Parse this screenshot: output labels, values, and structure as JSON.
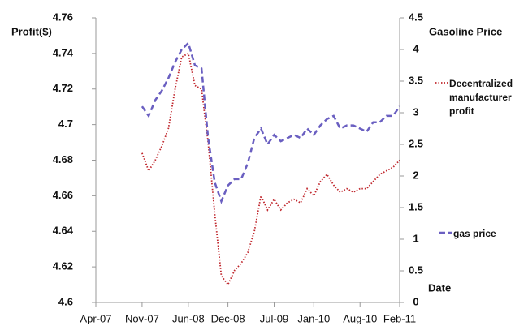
{
  "chart_data": {
    "type": "line",
    "y_label": "Profit($)",
    "y2_label": "Gasoline Price",
    "x_label": "Date",
    "x": [
      7,
      8,
      9,
      10,
      11,
      12,
      13,
      14,
      15,
      16,
      17,
      18,
      19,
      20,
      21,
      22,
      23,
      24,
      25,
      26,
      27,
      28,
      29,
      30,
      31,
      32,
      33,
      34,
      35,
      36,
      37,
      38,
      39,
      40,
      41,
      42,
      43,
      44,
      45,
      46
    ],
    "xlim": [
      0,
      46
    ],
    "xticks": [
      {
        "value": 0,
        "label": "Apr-07"
      },
      {
        "value": 7,
        "label": "Nov-07"
      },
      {
        "value": 14,
        "label": "Jun-08"
      },
      {
        "value": 20,
        "label": "Dec-08"
      },
      {
        "value": 27,
        "label": "Jul-09"
      },
      {
        "value": 33,
        "label": "Jan-10"
      },
      {
        "value": 40,
        "label": "Aug-10"
      },
      {
        "value": 46,
        "label": "Feb-11"
      }
    ],
    "ylim": [
      4.6,
      4.76
    ],
    "yticks": [
      4.6,
      4.62,
      4.64,
      4.66,
      4.68,
      4.7,
      4.72,
      4.74,
      4.76
    ],
    "y2lim": [
      0,
      4.5
    ],
    "y2ticks": [
      0,
      0.5,
      1,
      1.5,
      2,
      2.5,
      3,
      3.5,
      4,
      4.5
    ],
    "legend": "right",
    "series": [
      {
        "name": "Decentralized manufacturer profit",
        "color": "#c0272d",
        "style": "dotted",
        "values": [
          4.684,
          4.674,
          4.68,
          4.688,
          4.698,
          4.72,
          4.738,
          4.74,
          4.722,
          4.72,
          4.69,
          4.65,
          4.615,
          4.61,
          4.618,
          4.622,
          4.628,
          4.64,
          4.66,
          4.652,
          4.658,
          4.652,
          4.656,
          4.658,
          4.656,
          4.664,
          4.66,
          4.668,
          4.672,
          4.666,
          4.662,
          4.664,
          4.662,
          4.664,
          4.664,
          4.668,
          4.672,
          4.674,
          4.676,
          4.68
        ]
      },
      {
        "name": "gas price",
        "color": "#6a5fc1",
        "style": "dashed",
        "axis": "y2",
        "values": [
          3.1,
          2.95,
          3.2,
          3.35,
          3.55,
          3.8,
          4.0,
          4.1,
          3.75,
          3.7,
          2.6,
          1.9,
          1.6,
          1.85,
          1.95,
          1.95,
          2.2,
          2.6,
          2.75,
          2.5,
          2.65,
          2.55,
          2.6,
          2.65,
          2.6,
          2.75,
          2.65,
          2.8,
          2.9,
          2.95,
          2.75,
          2.8,
          2.8,
          2.75,
          2.7,
          2.85,
          2.85,
          2.95,
          2.95,
          3.1
        ]
      }
    ]
  }
}
